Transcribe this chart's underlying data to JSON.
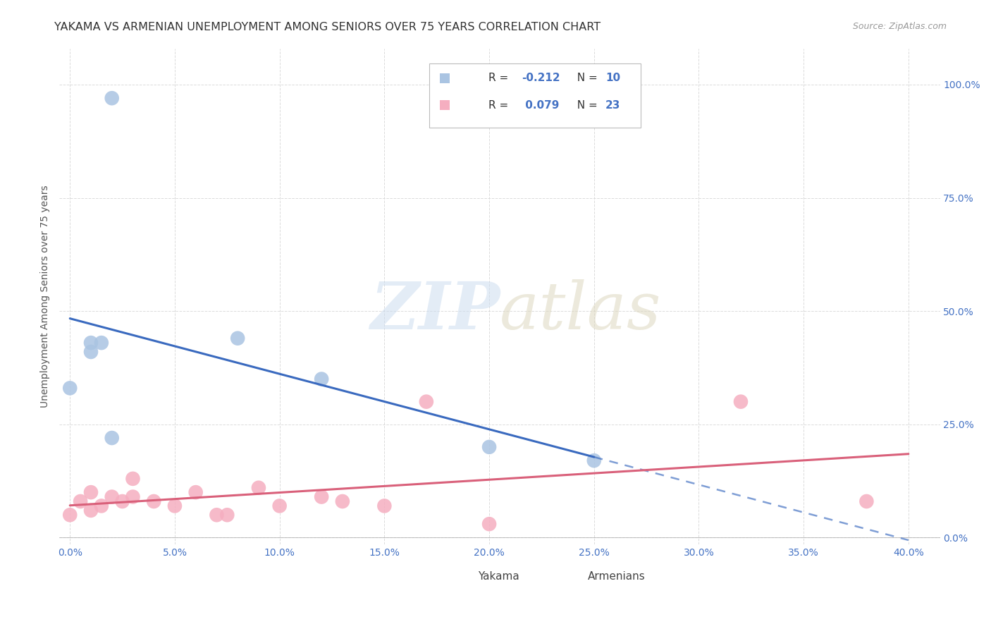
{
  "title": "YAKAMA VS ARMENIAN UNEMPLOYMENT AMONG SENIORS OVER 75 YEARS CORRELATION CHART",
  "source": "Source: ZipAtlas.com",
  "ylabel": "Unemployment Among Seniors over 75 years",
  "xlabel_ticks": [
    0.0,
    0.05,
    0.1,
    0.15,
    0.2,
    0.25,
    0.3,
    0.35,
    0.4
  ],
  "ylabel_ticks": [
    0.0,
    0.25,
    0.5,
    0.75,
    1.0
  ],
  "xlim": [
    -0.005,
    0.415
  ],
  "ylim": [
    -0.015,
    1.08
  ],
  "yakama_x": [
    0.0,
    0.01,
    0.01,
    0.015,
    0.02,
    0.02,
    0.08,
    0.12,
    0.2,
    0.25
  ],
  "yakama_y": [
    0.33,
    0.43,
    0.41,
    0.43,
    0.97,
    0.22,
    0.44,
    0.35,
    0.2,
    0.17
  ],
  "armenian_x": [
    0.0,
    0.005,
    0.01,
    0.01,
    0.015,
    0.02,
    0.025,
    0.03,
    0.03,
    0.04,
    0.05,
    0.06,
    0.07,
    0.075,
    0.09,
    0.1,
    0.12,
    0.13,
    0.15,
    0.17,
    0.2,
    0.32,
    0.38
  ],
  "armenian_y": [
    0.05,
    0.08,
    0.06,
    0.1,
    0.07,
    0.09,
    0.08,
    0.13,
    0.09,
    0.08,
    0.07,
    0.1,
    0.05,
    0.05,
    0.11,
    0.07,
    0.09,
    0.08,
    0.07,
    0.3,
    0.03,
    0.3,
    0.08
  ],
  "yakama_color": "#aac4e2",
  "armenian_color": "#f5aec0",
  "yakama_line_color": "#3a6abf",
  "armenian_line_color": "#d9607a",
  "R_yakama": -0.212,
  "N_yakama": 10,
  "R_armenian": 0.079,
  "N_armenian": 23,
  "background_color": "#ffffff",
  "grid_color": "#d8d8d8",
  "title_fontsize": 11.5,
  "axis_label_fontsize": 10,
  "tick_fontsize": 10,
  "tick_color": "#4472c4",
  "legend_text_color": "#4472c4",
  "source_color": "#999999"
}
